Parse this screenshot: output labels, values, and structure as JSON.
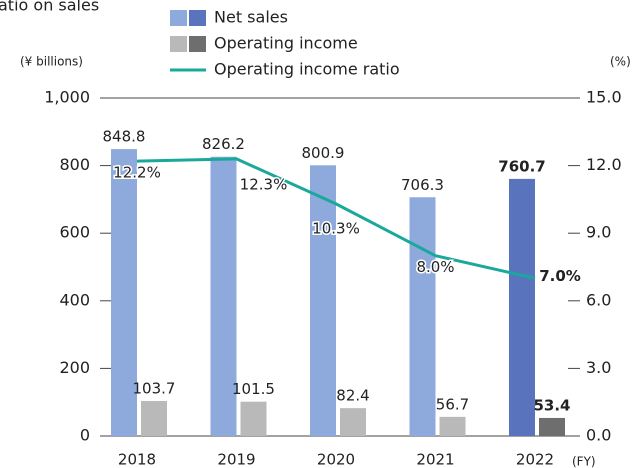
{
  "chart_data": {
    "type": "bar_line",
    "title": "atio on sales",
    "y_label": "(¥ billions)",
    "y2_label": "(%)",
    "x_label": "(FY)",
    "categories": [
      "2018",
      "2019",
      "2020",
      "2021",
      "2022"
    ],
    "series": [
      {
        "name": "Net sales",
        "type": "bar",
        "color": "#8eaadc",
        "highlight_color": "#5a73bd",
        "values": [
          848.8,
          826.2,
          800.9,
          706.3,
          760.7
        ]
      },
      {
        "name": "Operating income",
        "type": "bar",
        "color": "#b9b9b9",
        "highlight_color": "#6e6e6e",
        "values": [
          103.7,
          101.5,
          82.4,
          56.7,
          53.4
        ]
      },
      {
        "name": "Operating income ratio",
        "type": "line",
        "axis": "y2",
        "color": "#1aa89b",
        "values": [
          12.2,
          12.3,
          10.3,
          8.0,
          7.0
        ],
        "value_labels": [
          "12.2%",
          "12.3%",
          "10.3%",
          "8.0%",
          "7.0%"
        ]
      }
    ],
    "highlight_index": 4,
    "ylim": [
      0,
      1000
    ],
    "yticks": [
      0,
      200,
      400,
      600,
      800,
      {
        "value": 1000,
        "label": "1,000"
      }
    ],
    "y2lim": [
      0,
      15
    ],
    "y2ticks": [
      {
        "value": 0,
        "label": "0.0"
      },
      {
        "value": 3,
        "label": "3.0"
      },
      {
        "value": 6,
        "label": "6.0"
      },
      {
        "value": 9,
        "label": "9.0"
      },
      {
        "value": 12,
        "label": "12.0"
      },
      {
        "value": 15,
        "label": "15.0"
      }
    ]
  }
}
